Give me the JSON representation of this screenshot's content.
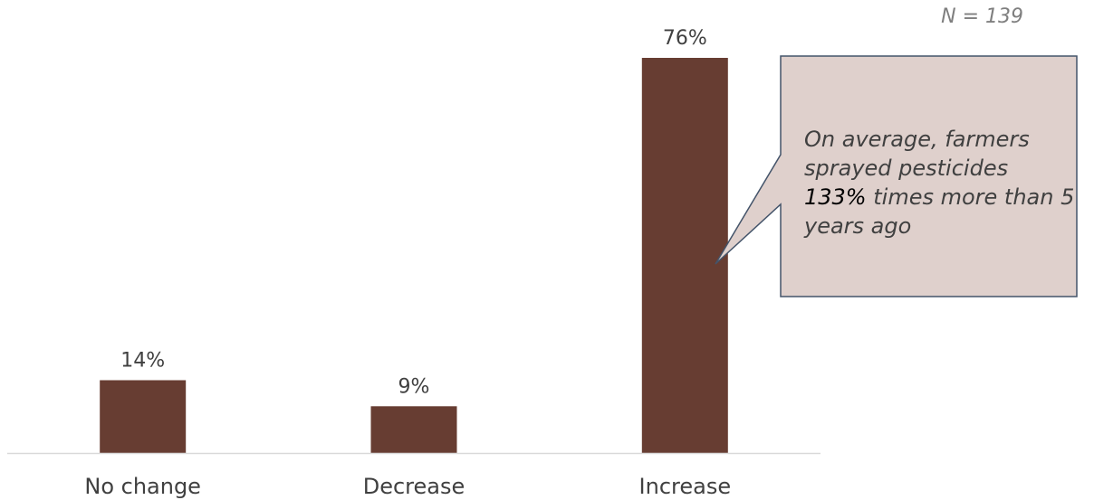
{
  "chart_data": {
    "type": "bar",
    "categories": [
      "No change",
      "Decrease",
      "Increase"
    ],
    "values": [
      14,
      9,
      76
    ],
    "value_labels": [
      "14%",
      "9%",
      "76%"
    ],
    "ylim": [
      0,
      84
    ],
    "grid": false,
    "bar_color": "#673d32",
    "axis_color": "#d9d9d9"
  },
  "sample_size": "N = 139",
  "callout": {
    "text_before": "On average, farmers sprayed pesticides ",
    "highlight": "133%",
    "text_after": " times more than 5 years ago",
    "fill_color": "#dfd0cc",
    "border_color": "#44546a"
  }
}
